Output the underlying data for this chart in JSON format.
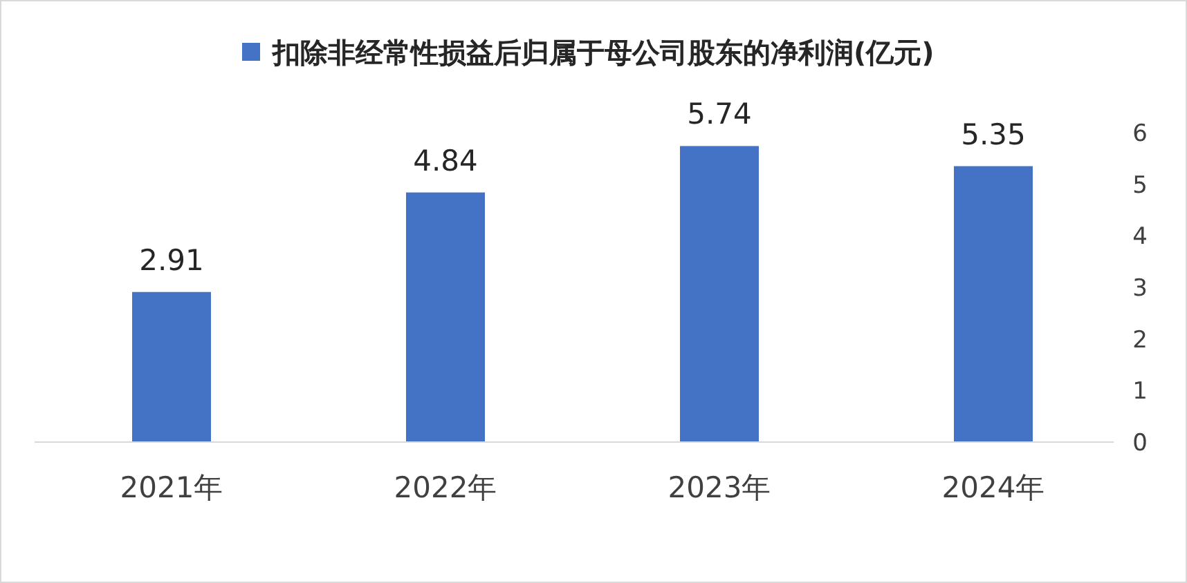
{
  "chart_data": {
    "type": "bar",
    "categories": [
      "2021年",
      "2022年",
      "2023年",
      "2024年"
    ],
    "series": [
      {
        "name": "扣除非经常性损益后归属于母公司股东的净利润(亿元)",
        "color": "#4472c4",
        "values": [
          2.91,
          4.84,
          5.74,
          5.35
        ]
      }
    ],
    "ylim": [
      0,
      6
    ],
    "yticks": [
      0,
      1,
      2,
      3,
      4,
      5,
      6
    ],
    "data_labels": true,
    "legend": "top"
  }
}
